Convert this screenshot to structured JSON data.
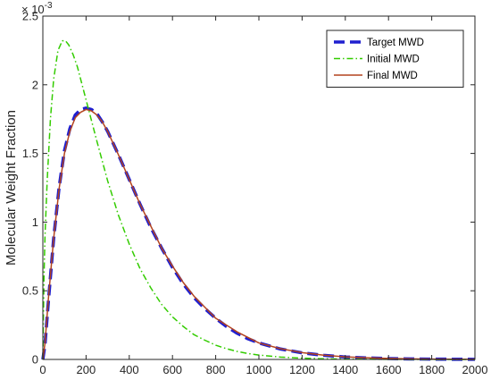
{
  "chart_data": {
    "type": "line",
    "title": "",
    "xlabel": "",
    "ylabel": "Molecular Weight Fraction",
    "xlim": [
      0,
      2000
    ],
    "ylim": [
      0,
      0.0025
    ],
    "x_ticks": [
      0,
      200,
      400,
      600,
      800,
      1000,
      1200,
      1400,
      1600,
      1800,
      2000
    ],
    "x_tick_labels": [
      "0",
      "200",
      "400",
      "600",
      "800",
      "1000",
      "1200",
      "1400",
      "1600",
      "1800",
      "2000"
    ],
    "y_ticks": [
      0,
      0.0005,
      0.001,
      0.0015,
      0.002,
      0.0025
    ],
    "y_tick_labels": [
      "0",
      "0.5",
      "1",
      "1.5",
      "2",
      "2.5"
    ],
    "y_exponent_base": "× 10",
    "y_exponent_power": "-3",
    "grid": false,
    "legend_position": "top-right",
    "series": [
      {
        "name": "Target MWD",
        "color": "#1f1fcf",
        "style": "dashed",
        "x": [
          0,
          10,
          25,
          50,
          75,
          100,
          125,
          150,
          175,
          200,
          225,
          250,
          275,
          300,
          350,
          400,
          450,
          500,
          550,
          600,
          650,
          700,
          750,
          800,
          850,
          900,
          950,
          1000,
          1100,
          1200,
          1300,
          1400,
          1500,
          1600,
          1700,
          1800,
          1900,
          2000
        ],
        "y": [
          0,
          0.00011,
          0.00041,
          0.00088,
          0.00125,
          0.00152,
          0.00168,
          0.00178,
          0.00182,
          0.00183,
          0.00182,
          0.00179,
          0.00173,
          0.00166,
          0.00149,
          0.00131,
          0.00113,
          0.00096,
          0.00081,
          0.00067,
          0.00055,
          0.00045,
          0.00037,
          0.0003,
          0.00024,
          0.00019,
          0.00015,
          0.00012,
          7.6e-05,
          4.8e-05,
          3e-05,
          1.8e-05,
          1.1e-05,
          6.6e-06,
          4e-06,
          2.4e-06,
          1.4e-06,
          8e-07
        ]
      },
      {
        "name": "Initial MWD",
        "color": "#33cc00",
        "style": "dashdot",
        "x": [
          0,
          5,
          10,
          20,
          35,
          50,
          70,
          90,
          105,
          120,
          140,
          160,
          200,
          250,
          300,
          350,
          400,
          450,
          500,
          550,
          600,
          650,
          700,
          750,
          800,
          850,
          900,
          950,
          1000,
          1100,
          1200,
          1300,
          1400,
          1500,
          1600,
          1700,
          1800,
          1900,
          2000
        ],
        "y": [
          0,
          0.00058,
          0.0009,
          0.0013,
          0.00175,
          0.00204,
          0.00225,
          0.00232,
          0.00232,
          0.00229,
          0.00222,
          0.00213,
          0.00189,
          0.00159,
          0.0013,
          0.00105,
          0.00084,
          0.00066,
          0.00052,
          0.0004,
          0.00031,
          0.00024,
          0.00018,
          0.00014,
          0.000104,
          7.8e-05,
          5.8e-05,
          4.3e-05,
          3.2e-05,
          1.7e-05,
          9.1e-06,
          4.8e-06,
          2.5e-06,
          1.3e-06,
          7e-07,
          4e-07,
          2e-07,
          1e-07,
          5e-08
        ]
      },
      {
        "name": "Final MWD",
        "color": "#b3431f",
        "style": "solid",
        "x": [
          0,
          10,
          25,
          50,
          75,
          100,
          125,
          150,
          175,
          200,
          225,
          250,
          275,
          300,
          350,
          400,
          450,
          500,
          550,
          600,
          650,
          700,
          750,
          800,
          850,
          900,
          950,
          1000,
          1100,
          1200,
          1300,
          1400,
          1500,
          1600,
          1700,
          1800,
          1900,
          2000
        ],
        "y": [
          0,
          0.00012,
          0.00043,
          0.00088,
          0.00124,
          0.0015,
          0.00166,
          0.00176,
          0.0018,
          0.00182,
          0.00181,
          0.00178,
          0.00173,
          0.00166,
          0.00149,
          0.00131,
          0.00113,
          0.00097,
          0.00081,
          0.00068,
          0.00056,
          0.00046,
          0.00038,
          0.0003,
          0.00025,
          0.0002,
          0.00016,
          0.00012,
          7.8e-05,
          5e-05,
          3.1e-05,
          1.9e-05,
          1.2e-05,
          7e-06,
          4.2e-06,
          2.5e-06,
          1.5e-06,
          9e-07
        ]
      }
    ]
  }
}
